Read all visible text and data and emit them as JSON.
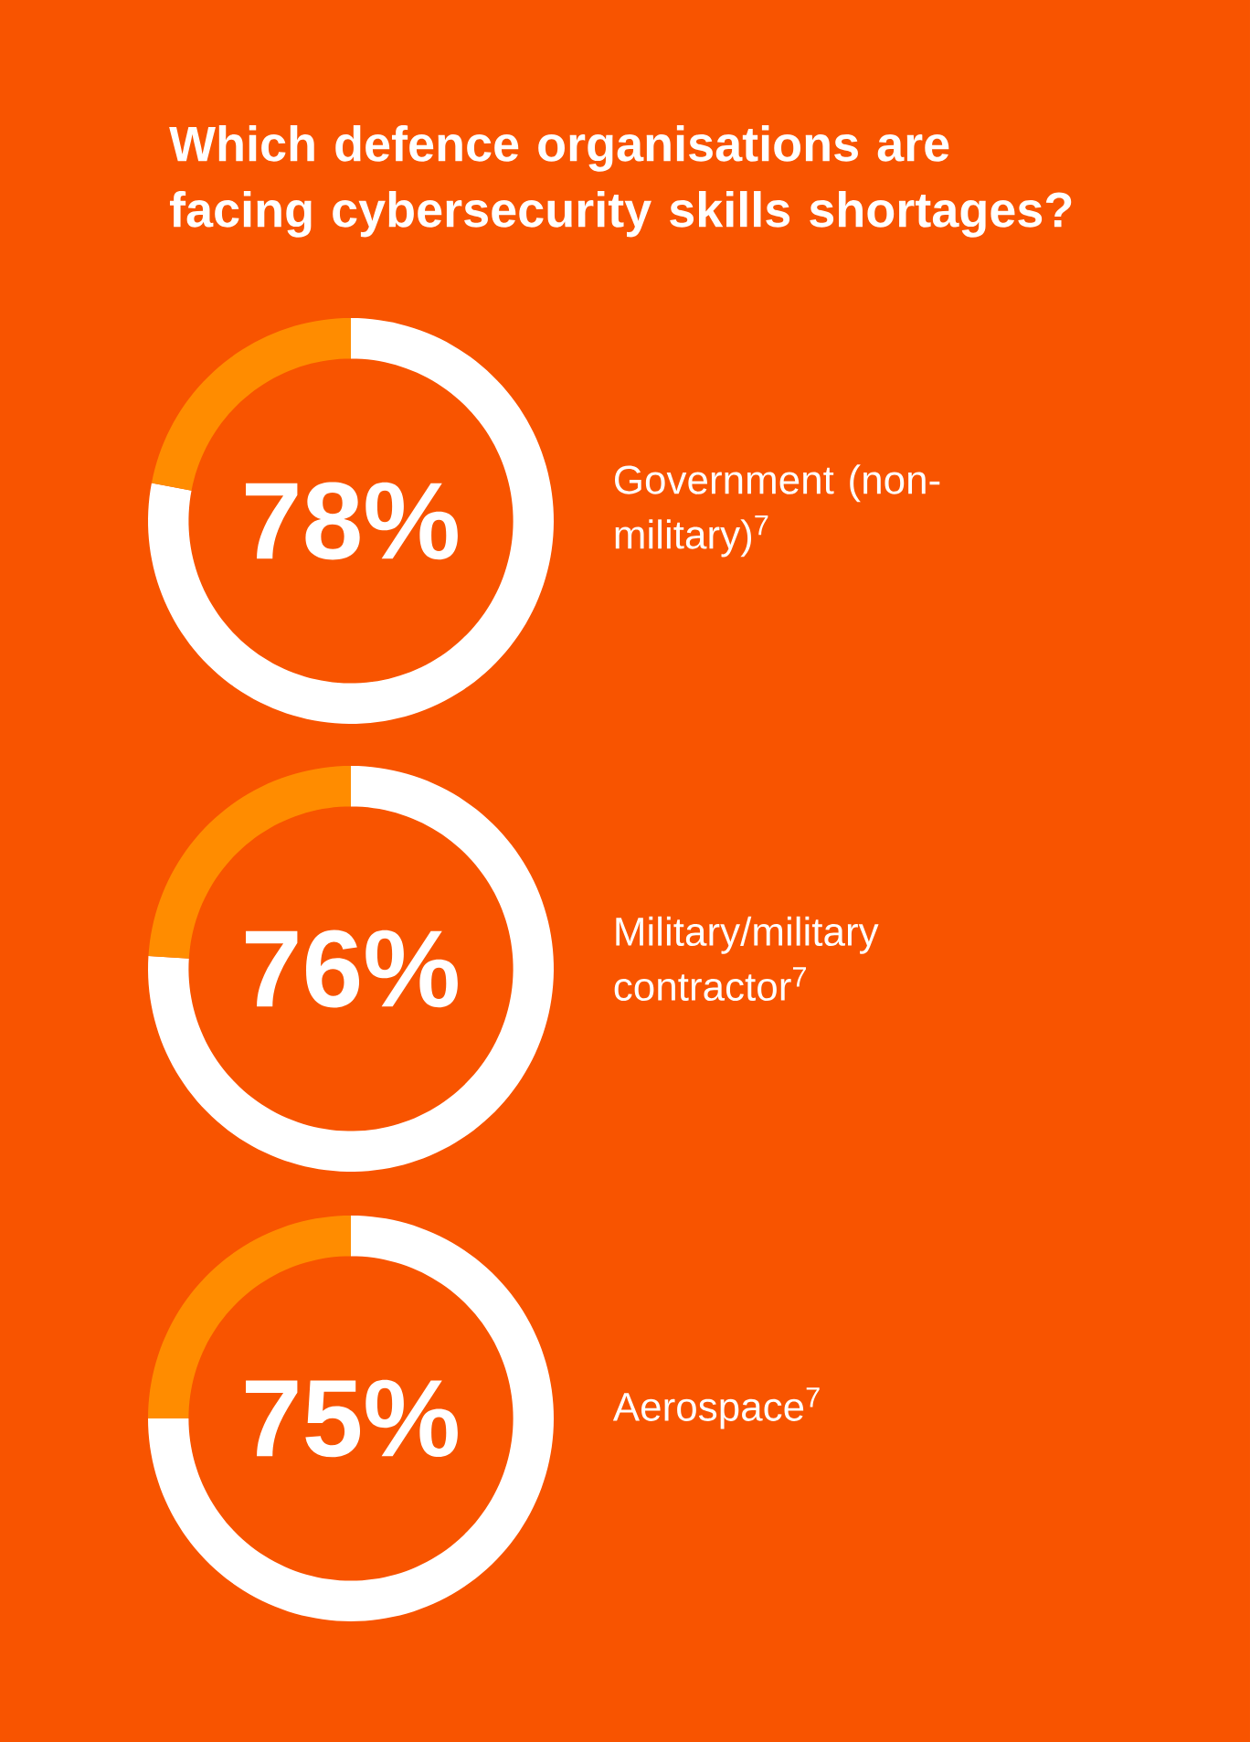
{
  "chart_data": [
    {
      "type": "donut",
      "title": "Which defence organisations are facing cybersecurity skills shortages?",
      "categories": [
        "Government (non-military)$^{7}$",
        null
      ],
      "values": [
        78,
        22
      ],
      "colors": [
        "#ffffff",
        "#ff8c00"
      ],
      "value_labels": [
        "78%",
        null
      ]
    },
    {
      "type": "donut",
      "categories": [
        "Military/military contractor$^{7}$",
        null
      ],
      "values": [
        76,
        24
      ],
      "colors": [
        "#ffffff",
        "#ff8c00"
      ],
      "value_labels": [
        "76%",
        null
      ]
    },
    {
      "type": "donut",
      "categories": [
        "Aerospace$^{7}$",
        null
      ],
      "values": [
        75,
        25
      ],
      "colors": [
        "#ffffff",
        "#ff8c00"
      ],
      "value_labels": [
        "75%",
        null
      ]
    }
  ]
}
